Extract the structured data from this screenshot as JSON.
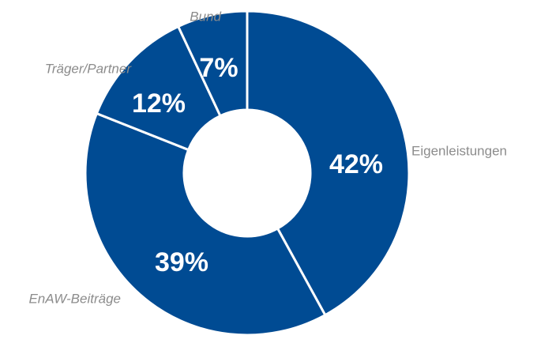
{
  "chart_data": {
    "type": "pie",
    "title": "",
    "donut": true,
    "color": "#004B93",
    "label_color": "#8C8C8C",
    "slices": [
      {
        "label": "Eigenleistungen",
        "value": 42,
        "value_label": "42%",
        "label_italic": false
      },
      {
        "label": "EnAW-Beiträge",
        "value": 39,
        "value_label": "39%",
        "label_italic": true
      },
      {
        "label": "Träger/Partner",
        "value": 12,
        "value_label": "12%",
        "label_italic": true
      },
      {
        "label": "Bund",
        "value": 7,
        "value_label": "7%",
        "label_italic": true
      }
    ]
  }
}
